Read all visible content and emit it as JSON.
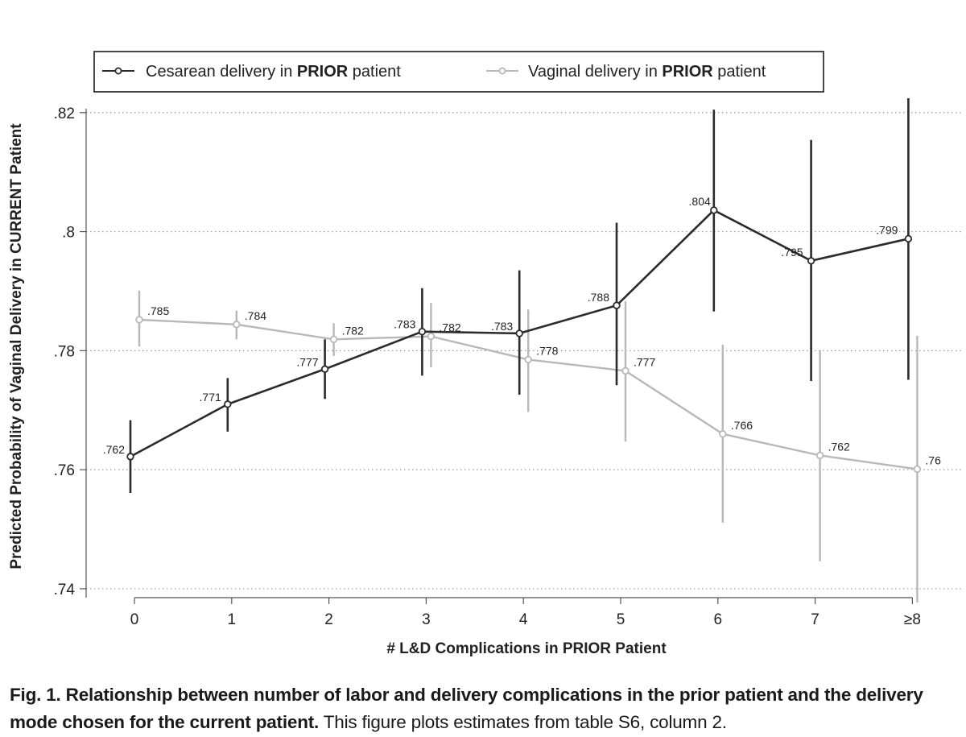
{
  "chart_data": {
    "type": "line",
    "xlabel": "# L&D Complications in PRIOR Patient",
    "ylabel": "Predicted Probability of Vaginal Delivery in CURRENT Patient",
    "categories": [
      "0",
      "1",
      "2",
      "3",
      "4",
      "5",
      "6",
      "7",
      "≥8"
    ],
    "y_ticks": [
      ".74",
      ".76",
      ".78",
      ".8",
      ".82"
    ],
    "ylim": [
      0.7385,
      0.822
    ],
    "grid": true,
    "legend_position": "top",
    "series": [
      {
        "name": "Cesarean delivery in PRIOR patient",
        "legend_plain": "Cesarean delivery in ",
        "legend_bold": "PRIOR",
        "legend_tail": " patient",
        "color": "#2b2b2b",
        "values": [
          0.7622,
          0.771,
          0.7769,
          0.7832,
          0.7829,
          0.7876,
          0.8036,
          0.7951,
          0.7988
        ],
        "ci_low": [
          0.7561,
          0.7664,
          0.7719,
          0.7758,
          0.7726,
          0.7742,
          0.7866,
          0.7749,
          0.7751
        ],
        "ci_high": [
          0.7683,
          0.7754,
          0.7819,
          0.7905,
          0.7935,
          0.8015,
          0.8205,
          0.8154,
          0.8224
        ],
        "labels": [
          ".762",
          ".771",
          ".777",
          ".783",
          ".783",
          ".788",
          ".804",
          ".795",
          ".799"
        ]
      },
      {
        "name": "Vaginal delivery in PRIOR patient",
        "legend_plain": "Vaginal delivery in ",
        "legend_bold": "PRIOR",
        "legend_tail": " patient",
        "color": "#b8b8b8",
        "values": [
          0.7852,
          0.7844,
          0.7819,
          0.7824,
          0.7785,
          0.7766,
          0.766,
          0.7624,
          0.7601
        ],
        "ci_low": [
          0.7807,
          0.7819,
          0.7791,
          0.7772,
          0.7697,
          0.7647,
          0.7511,
          0.7446,
          0.7377
        ],
        "ci_high": [
          0.7901,
          0.7867,
          0.7846,
          0.788,
          0.7869,
          0.7883,
          0.781,
          0.7801,
          0.7825
        ],
        "labels": [
          ".785",
          ".784",
          ".782",
          ".782",
          ".778",
          ".777",
          ".766",
          ".762",
          ".76"
        ]
      }
    ]
  },
  "caption": {
    "bold": "Fig. 1. Relationship between number of labor and delivery complications in the prior patient and the delivery mode chosen for the current patient.",
    "plain": " This figure plots estimates from table S6, column 2."
  }
}
